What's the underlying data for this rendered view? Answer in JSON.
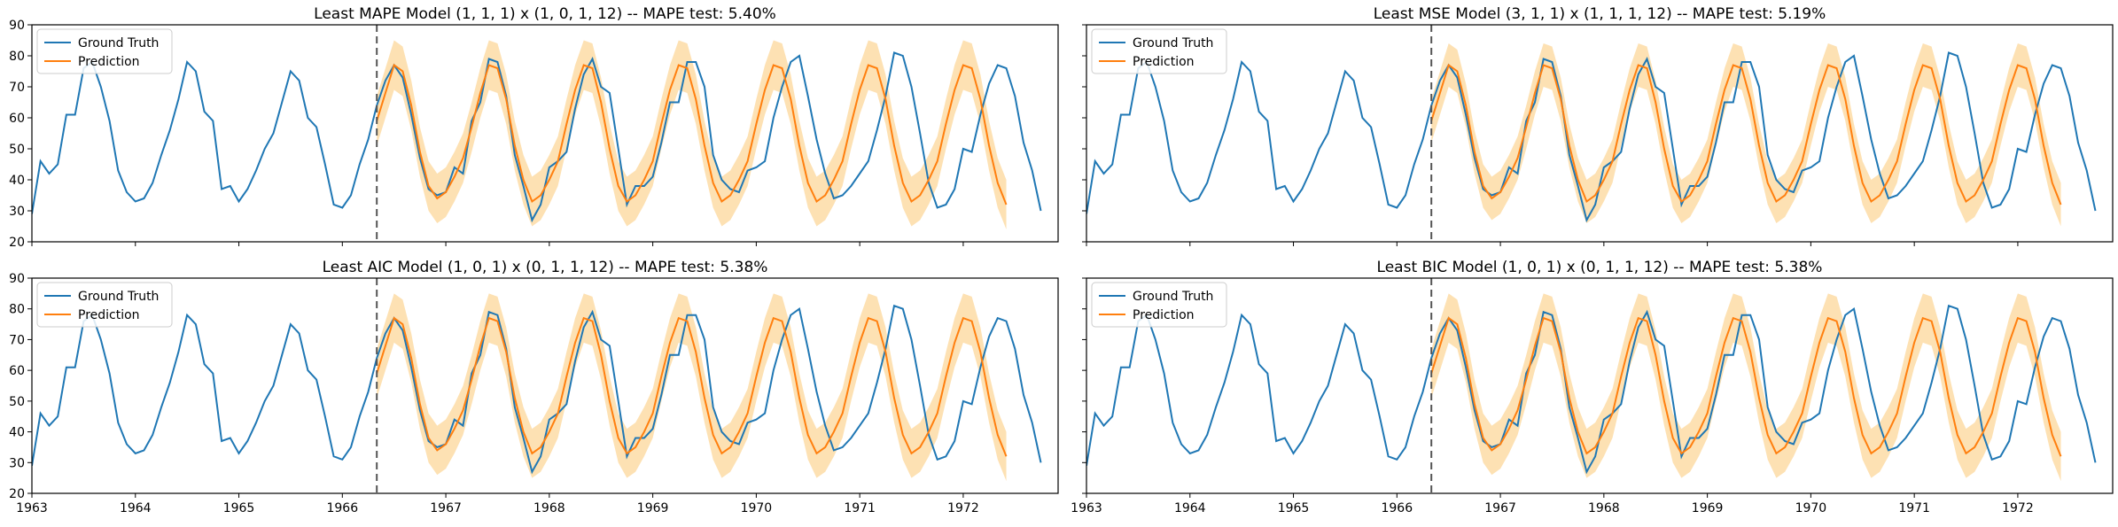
{
  "figure": {
    "layout": "2x2 grid",
    "sharex": true,
    "sharey": true
  },
  "colors": {
    "ground_truth": "#1f77b4",
    "prediction": "#ff7f0e",
    "confidence_band": "#fdd9a0",
    "split_line": "#555555"
  },
  "chart_data": [
    {
      "type": "line",
      "title": "Least MAPE Model (1, 1, 1) x (1, 0, 1, 12) -- MAPE test: 5.40%",
      "legend": [
        "Ground Truth",
        "Prediction"
      ],
      "legend_position": "upper-left",
      "xlim": [
        1963.0,
        1972.917
      ],
      "ylim": [
        20,
        90
      ],
      "yticks": [
        20,
        30,
        40,
        50,
        60,
        70,
        80,
        90
      ],
      "xticks": [
        1963,
        1964,
        1965,
        1966,
        1967,
        1968,
        1969,
        1970,
        1971,
        1972
      ],
      "show_xticklabels": false,
      "split_x": 1966.333,
      "band_halfwidth": 8
    },
    {
      "type": "line",
      "title": "Least MSE Model (3, 1, 1) x (1, 1, 1, 12) -- MAPE test: 5.19%",
      "legend": [
        "Ground Truth",
        "Prediction"
      ],
      "legend_position": "upper-left",
      "xlim": [
        1963.0,
        1972.917
      ],
      "ylim": [
        20,
        90
      ],
      "yticks": [
        20,
        30,
        40,
        50,
        60,
        70,
        80,
        90
      ],
      "xticks": [
        1963,
        1964,
        1965,
        1966,
        1967,
        1968,
        1969,
        1970,
        1971,
        1972
      ],
      "show_xticklabels": false,
      "split_x": 1966.333,
      "band_halfwidth": 7
    },
    {
      "type": "line",
      "title": "Least AIC Model (1, 0, 1) x (0, 1, 1, 12) -- MAPE test: 5.38%",
      "legend": [
        "Ground Truth",
        "Prediction"
      ],
      "legend_position": "upper-left",
      "xlim": [
        1963.0,
        1972.917
      ],
      "ylim": [
        20,
        90
      ],
      "yticks": [
        20,
        30,
        40,
        50,
        60,
        70,
        80,
        90
      ],
      "xticks": [
        1963,
        1964,
        1965,
        1966,
        1967,
        1968,
        1969,
        1970,
        1971,
        1972
      ],
      "show_xticklabels": true,
      "split_x": 1966.333,
      "band_halfwidth": 8
    },
    {
      "type": "line",
      "title": "Least BIC Model (1, 0, 1) x (0, 1, 1, 12) -- MAPE test: 5.38%",
      "legend": [
        "Ground Truth",
        "Prediction"
      ],
      "legend_position": "upper-left",
      "xlim": [
        1963.0,
        1972.917
      ],
      "ylim": [
        20,
        90
      ],
      "yticks": [
        20,
        30,
        40,
        50,
        60,
        70,
        80,
        90
      ],
      "xticks": [
        1963,
        1964,
        1965,
        1966,
        1967,
        1968,
        1969,
        1970,
        1971,
        1972
      ],
      "show_xticklabels": true,
      "split_x": 1966.333,
      "band_halfwidth": 8
    }
  ],
  "series": {
    "x_start": 1963.0,
    "x_step": 0.08333,
    "ground_truth": [
      29,
      46,
      42,
      45,
      61,
      61,
      76,
      78,
      70,
      59,
      43,
      36,
      33,
      34,
      39,
      48,
      56,
      66,
      78,
      75,
      62,
      59,
      37,
      38,
      33,
      37,
      43,
      50,
      55,
      65,
      75,
      72,
      60,
      57,
      45,
      32,
      31,
      35,
      45,
      53,
      64,
      72,
      77,
      73,
      61,
      47,
      37,
      35,
      36,
      44,
      42,
      59,
      65,
      79,
      78,
      67,
      48,
      38,
      27,
      32,
      44,
      46,
      49,
      63,
      74,
      79,
      70,
      68,
      50,
      32,
      38,
      38,
      41,
      52,
      65,
      65,
      78,
      78,
      70,
      48,
      40,
      37,
      36,
      43,
      44,
      46,
      60,
      70,
      78,
      80,
      67,
      53,
      42,
      34,
      35,
      38,
      42,
      46,
      56,
      67,
      81,
      80,
      70,
      55,
      39,
      31,
      32,
      37,
      50,
      49,
      61,
      71,
      77,
      76,
      67,
      52,
      43,
      30
    ],
    "prediction": [
      null,
      null,
      null,
      null,
      null,
      null,
      null,
      null,
      null,
      null,
      null,
      null,
      null,
      null,
      null,
      null,
      null,
      null,
      null,
      null,
      null,
      null,
      null,
      null,
      null,
      null,
      null,
      null,
      null,
      null,
      null,
      null,
      null,
      null,
      null,
      null,
      null,
      null,
      null,
      null,
      59,
      68,
      77,
      75,
      64,
      49,
      38,
      34,
      36,
      41,
      47,
      57,
      68,
      77,
      76,
      66,
      51,
      40,
      33,
      35,
      40,
      46,
      58,
      69,
      77,
      76,
      65,
      50,
      38,
      33,
      35,
      40,
      46,
      58,
      69,
      77,
      76,
      66,
      51,
      39,
      33,
      35,
      40,
      46,
      58,
      69,
      77,
      76,
      66,
      51,
      39,
      33,
      35,
      40,
      46,
      58,
      69,
      77,
      76,
      66,
      51,
      39,
      33,
      35,
      40,
      46,
      58,
      69,
      77,
      76,
      66,
      51,
      39,
      32
    ]
  }
}
